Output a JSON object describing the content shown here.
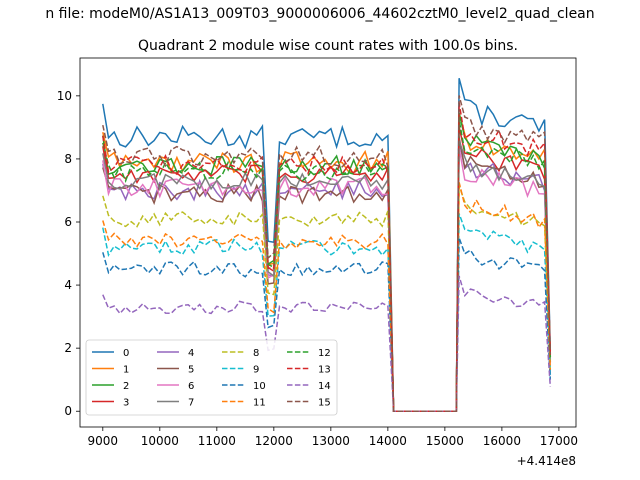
{
  "figure": {
    "suptitle": "n file: modeM0/AS1A13_009T03_9000006006_44602cztM0_level2_quad_clean",
    "title": "Quadrant 2 module wise count rates with 100.0s bins.",
    "offset_text": "+4.414e8"
  },
  "chart_data": {
    "type": "line",
    "title": "Quadrant 2 module wise count rates with 100.0s bins.",
    "xlabel": "",
    "ylabel": "",
    "x_offset": 441400000,
    "xlim": [
      8600,
      17300
    ],
    "ylim": [
      -0.5,
      11.2
    ],
    "xticks": [
      9000,
      10000,
      11000,
      12000,
      13000,
      14000,
      15000,
      16000,
      17000
    ],
    "yticks": [
      0,
      2,
      4,
      6,
      8,
      10
    ],
    "x_segments": [
      {
        "start": 9000,
        "end": 14150,
        "step": 100,
        "points": 52
      },
      {
        "start": 15250,
        "end": 16850,
        "step": 100,
        "points": 17
      }
    ],
    "gap_x": [
      14150,
      15250
    ],
    "legend": {
      "location": "lower left",
      "columns": 4
    },
    "series": [
      {
        "name": "0",
        "color": "#1f77b4",
        "dash": "solid",
        "level_a": 8.7,
        "level_b": 9.6,
        "amp": 0.35
      },
      {
        "name": "1",
        "color": "#ff7f0e",
        "dash": "solid",
        "level_a": 7.9,
        "level_b": 8.6,
        "amp": 0.35
      },
      {
        "name": "2",
        "color": "#2ca02c",
        "dash": "solid",
        "level_a": 7.8,
        "level_b": 8.6,
        "amp": 0.3
      },
      {
        "name": "3",
        "color": "#d62728",
        "dash": "solid",
        "level_a": 7.5,
        "level_b": 8.2,
        "amp": 0.3
      },
      {
        "name": "4",
        "color": "#9467bd",
        "dash": "solid",
        "level_a": 7.0,
        "level_b": 7.8,
        "amp": 0.3
      },
      {
        "name": "5",
        "color": "#8c564b",
        "dash": "solid",
        "level_a": 6.9,
        "level_b": 7.9,
        "amp": 0.3
      },
      {
        "name": "6",
        "color": "#e377c2",
        "dash": "solid",
        "level_a": 7.1,
        "level_b": 7.6,
        "amp": 0.3
      },
      {
        "name": "7",
        "color": "#7f7f7f",
        "dash": "solid",
        "level_a": 7.3,
        "level_b": 7.8,
        "amp": 0.3
      },
      {
        "name": "8",
        "color": "#bcbd22",
        "dash": "dashed",
        "level_a": 6.1,
        "level_b": 6.5,
        "amp": 0.25
      },
      {
        "name": "9",
        "color": "#17becf",
        "dash": "dashed",
        "level_a": 5.2,
        "level_b": 5.7,
        "amp": 0.25
      },
      {
        "name": "10",
        "color": "#1f77b4",
        "dash": "dashed",
        "level_a": 4.5,
        "level_b": 5.0,
        "amp": 0.25
      },
      {
        "name": "11",
        "color": "#ff7f0e",
        "dash": "dashed",
        "level_a": 5.4,
        "level_b": 6.6,
        "amp": 0.25
      },
      {
        "name": "12",
        "color": "#2ca02c",
        "dash": "dashed",
        "level_a": 7.6,
        "level_b": 8.4,
        "amp": 0.3
      },
      {
        "name": "13",
        "color": "#d62728",
        "dash": "dashed",
        "level_a": 7.8,
        "level_b": 8.9,
        "amp": 0.3
      },
      {
        "name": "14",
        "color": "#9467bd",
        "dash": "dashed",
        "level_a": 3.3,
        "level_b": 3.9,
        "amp": 0.2
      },
      {
        "name": "15",
        "color": "#8c564b",
        "dash": "dashed",
        "level_a": 8.1,
        "level_b": 9.1,
        "amp": 0.35
      }
    ]
  }
}
